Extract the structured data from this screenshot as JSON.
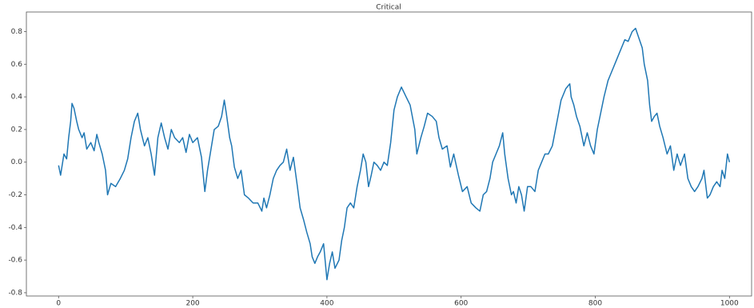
{
  "chart_data": {
    "type": "line",
    "title": "Critical",
    "color": "#1f77b4",
    "x": [
      0,
      3,
      8,
      12,
      15,
      18,
      20,
      23,
      27,
      30,
      35,
      38,
      42,
      48,
      53,
      57,
      60,
      65,
      70,
      73,
      78,
      85,
      92,
      98,
      103,
      108,
      113,
      118,
      122,
      128,
      133,
      138,
      143,
      148,
      153,
      158,
      163,
      168,
      173,
      180,
      185,
      190,
      195,
      200,
      207,
      213,
      218,
      222,
      226,
      232,
      238,
      243,
      247,
      250,
      255,
      258,
      262,
      267,
      272,
      277,
      283,
      290,
      297,
      303,
      306,
      310,
      315,
      320,
      325,
      330,
      335,
      340,
      345,
      350,
      356,
      360,
      365,
      370,
      375,
      378,
      382,
      386,
      390,
      395,
      400,
      404,
      408,
      412,
      418,
      422,
      426,
      430,
      435,
      440,
      445,
      450,
      454,
      458,
      462,
      466,
      470,
      475,
      480,
      485,
      490,
      495,
      500,
      505,
      511,
      518,
      524,
      531,
      534,
      540,
      545,
      550,
      557,
      563,
      567,
      572,
      579,
      584,
      589,
      596,
      602,
      609,
      615,
      622,
      628,
      633,
      638,
      643,
      647,
      652,
      657,
      662,
      665,
      670,
      675,
      678,
      682,
      686,
      690,
      694,
      699,
      704,
      710,
      715,
      720,
      725,
      730,
      736,
      743,
      749,
      756,
      762,
      764,
      768,
      772,
      777,
      783,
      788,
      793,
      798,
      803,
      808,
      813,
      819,
      824,
      829,
      834,
      839,
      844,
      849,
      855,
      860,
      865,
      870,
      873,
      878,
      881,
      884,
      888,
      892,
      896,
      901,
      907,
      912,
      917,
      922,
      927,
      933,
      938,
      943,
      948,
      953,
      959,
      962,
      967,
      971,
      976,
      981,
      986,
      989,
      993,
      997,
      1000
    ],
    "values": [
      -0.02,
      -0.08,
      0.05,
      0.02,
      0.15,
      0.25,
      0.36,
      0.33,
      0.25,
      0.2,
      0.15,
      0.18,
      0.08,
      0.12,
      0.07,
      0.17,
      0.12,
      0.05,
      -0.05,
      -0.2,
      -0.13,
      -0.15,
      -0.1,
      -0.05,
      0.02,
      0.15,
      0.25,
      0.3,
      0.2,
      0.1,
      0.15,
      0.05,
      -0.08,
      0.15,
      0.24,
      0.15,
      0.08,
      0.2,
      0.15,
      0.12,
      0.15,
      0.06,
      0.17,
      0.12,
      0.15,
      0.03,
      -0.18,
      -0.05,
      0.05,
      0.2,
      0.22,
      0.28,
      0.38,
      0.3,
      0.15,
      0.1,
      -0.03,
      -0.1,
      -0.05,
      -0.2,
      -0.22,
      -0.25,
      -0.25,
      -0.3,
      -0.22,
      -0.28,
      -0.2,
      -0.1,
      -0.05,
      -0.02,
      0,
      0.08,
      -0.05,
      0.03,
      -0.15,
      -0.28,
      -0.35,
      -0.43,
      -0.5,
      -0.58,
      -0.62,
      -0.58,
      -0.55,
      -0.5,
      -0.72,
      -0.62,
      -0.55,
      -0.65,
      -0.6,
      -0.48,
      -0.4,
      -0.28,
      -0.25,
      -0.28,
      -0.15,
      -0.05,
      0.05,
      0,
      -0.15,
      -0.08,
      0,
      -0.02,
      -0.05,
      0,
      -0.02,
      0.12,
      0.32,
      0.4,
      0.46,
      0.4,
      0.35,
      0.2,
      0.05,
      0.15,
      0.22,
      0.3,
      0.28,
      0.25,
      0.15,
      0.08,
      0.1,
      -0.03,
      0.05,
      -0.08,
      -0.18,
      -0.15,
      -0.25,
      -0.28,
      -0.3,
      -0.2,
      -0.18,
      -0.1,
      0,
      0.05,
      0.1,
      0.18,
      0.05,
      -0.1,
      -0.2,
      -0.18,
      -0.25,
      -0.15,
      -0.2,
      -0.3,
      -0.15,
      -0.15,
      -0.18,
      -0.05,
      0,
      0.05,
      0.05,
      0.1,
      0.25,
      0.38,
      0.45,
      0.48,
      0.4,
      0.35,
      0.28,
      0.22,
      0.1,
      0.18,
      0.1,
      0.05,
      0.2,
      0.3,
      0.4,
      0.5,
      0.55,
      0.6,
      0.65,
      0.7,
      0.75,
      0.74,
      0.8,
      0.82,
      0.76,
      0.7,
      0.6,
      0.5,
      0.35,
      0.25,
      0.28,
      0.3,
      0.22,
      0.15,
      0.05,
      0.1,
      -0.05,
      0.05,
      -0.02,
      0.05,
      -0.1,
      -0.15,
      -0.18,
      -0.15,
      -0.1,
      -0.05,
      -0.22,
      -0.2,
      -0.15,
      -0.12,
      -0.15,
      -0.05,
      -0.1,
      0.05,
      0
    ],
    "xlim": [
      -48,
      1033
    ],
    "xticks": [
      0,
      200,
      400,
      600,
      800,
      1000
    ],
    "ylim": [
      -0.82,
      0.92
    ],
    "yticks": [
      -0.8,
      -0.6,
      -0.4,
      -0.2,
      {
        "value": 0,
        "label": "0.0"
      },
      0.2,
      0.4,
      0.6,
      0.8
    ]
  }
}
